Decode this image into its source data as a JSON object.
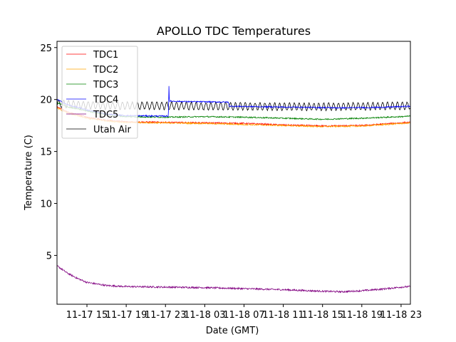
{
  "chart_data": {
    "type": "line",
    "title": "APOLLO TDC Temperatures",
    "xlabel": "Date (GMT)",
    "ylabel": "Temperature (C)",
    "xlim_hours": [
      -3.05,
      32.95
    ],
    "x_reference": "11-17 15:00 = 0 h",
    "ylim": [
      0.3,
      25.6
    ],
    "grid": false,
    "legend_position": "top-left",
    "x_ticks": [
      {
        "hour": 0,
        "label": "11-17 15"
      },
      {
        "hour": 4,
        "label": "11-17 19"
      },
      {
        "hour": 8,
        "label": "11-17 23"
      },
      {
        "hour": 12,
        "label": "11-18 03"
      },
      {
        "hour": 16,
        "label": "11-18 07"
      },
      {
        "hour": 20,
        "label": "11-18 11"
      },
      {
        "hour": 24,
        "label": "11-18 15"
      },
      {
        "hour": 28,
        "label": "11-18 19"
      },
      {
        "hour": 32,
        "label": "11-18 23"
      }
    ],
    "y_ticks": [
      {
        "value": 5,
        "label": "5"
      },
      {
        "value": 10,
        "label": "10"
      },
      {
        "value": 15,
        "label": "15"
      },
      {
        "value": 20,
        "label": "20"
      },
      {
        "value": 25,
        "label": "25"
      }
    ],
    "series": [
      {
        "name": "TDC1",
        "color": "#ff0000",
        "noise": 0.07,
        "points": [
          [
            -3.05,
            19.3
          ],
          [
            -2,
            18.8
          ],
          [
            0,
            18.3
          ],
          [
            2,
            18.0
          ],
          [
            4,
            17.85
          ],
          [
            8,
            17.8
          ],
          [
            12,
            17.75
          ],
          [
            16,
            17.7
          ],
          [
            20,
            17.55
          ],
          [
            24,
            17.45
          ],
          [
            28,
            17.5
          ],
          [
            32,
            17.75
          ],
          [
            32.95,
            17.8
          ]
        ]
      },
      {
        "name": "TDC2",
        "color": "#ffa500",
        "noise": 0.07,
        "points": [
          [
            -3.05,
            19.2
          ],
          [
            -2,
            18.7
          ],
          [
            0,
            18.2
          ],
          [
            2,
            17.95
          ],
          [
            4,
            17.8
          ],
          [
            8,
            17.75
          ],
          [
            12,
            17.7
          ],
          [
            16,
            17.6
          ],
          [
            20,
            17.5
          ],
          [
            24,
            17.4
          ],
          [
            28,
            17.45
          ],
          [
            32,
            17.7
          ],
          [
            32.95,
            17.75
          ]
        ]
      },
      {
        "name": "TDC3",
        "color": "#008000",
        "noise": 0.06,
        "points": [
          [
            -3.05,
            19.7
          ],
          [
            -2,
            19.3
          ],
          [
            0,
            18.9
          ],
          [
            2,
            18.55
          ],
          [
            4,
            18.35
          ],
          [
            8,
            18.3
          ],
          [
            12,
            18.35
          ],
          [
            16,
            18.3
          ],
          [
            20,
            18.2
          ],
          [
            24,
            18.1
          ],
          [
            28,
            18.2
          ],
          [
            32,
            18.35
          ],
          [
            32.95,
            18.4
          ]
        ]
      },
      {
        "name": "TDC4",
        "color": "#0000ff",
        "noise": 0.06,
        "points": [
          [
            -3.05,
            20.0
          ],
          [
            -2,
            19.5
          ],
          [
            0,
            19.0
          ],
          [
            2,
            18.6
          ],
          [
            4,
            18.45
          ],
          [
            8.3,
            18.4
          ],
          [
            8.35,
            21.3
          ],
          [
            8.4,
            19.85
          ],
          [
            10,
            19.8
          ],
          [
            14.4,
            19.75
          ],
          [
            14.5,
            19.35
          ],
          [
            18,
            19.3
          ],
          [
            22,
            19.25
          ],
          [
            26,
            19.2
          ],
          [
            30,
            19.25
          ],
          [
            32.95,
            19.35
          ]
        ]
      },
      {
        "name": "TDC5",
        "color": "#800080",
        "noise": 0.08,
        "points": [
          [
            -3.05,
            4.0
          ],
          [
            -2,
            3.3
          ],
          [
            -1,
            2.8
          ],
          [
            0,
            2.4
          ],
          [
            2,
            2.1
          ],
          [
            4,
            2.0
          ],
          [
            8,
            1.95
          ],
          [
            12,
            1.9
          ],
          [
            16,
            1.8
          ],
          [
            20,
            1.7
          ],
          [
            24,
            1.55
          ],
          [
            26,
            1.5
          ],
          [
            28,
            1.6
          ],
          [
            30,
            1.75
          ],
          [
            32,
            1.95
          ],
          [
            32.95,
            2.0
          ]
        ]
      },
      {
        "name": "Utah Air",
        "color": "#000000",
        "noise": 0.05,
        "oscillation": {
          "amplitude": 0.35,
          "period_hours": 0.5
        },
        "points": [
          [
            -3.05,
            19.6
          ],
          [
            0,
            19.45
          ],
          [
            4,
            19.4
          ],
          [
            8,
            19.4
          ],
          [
            12,
            19.35
          ],
          [
            16,
            19.35
          ],
          [
            20,
            19.3
          ],
          [
            24,
            19.3
          ],
          [
            28,
            19.35
          ],
          [
            32,
            19.4
          ],
          [
            32.95,
            19.4
          ]
        ]
      }
    ]
  }
}
